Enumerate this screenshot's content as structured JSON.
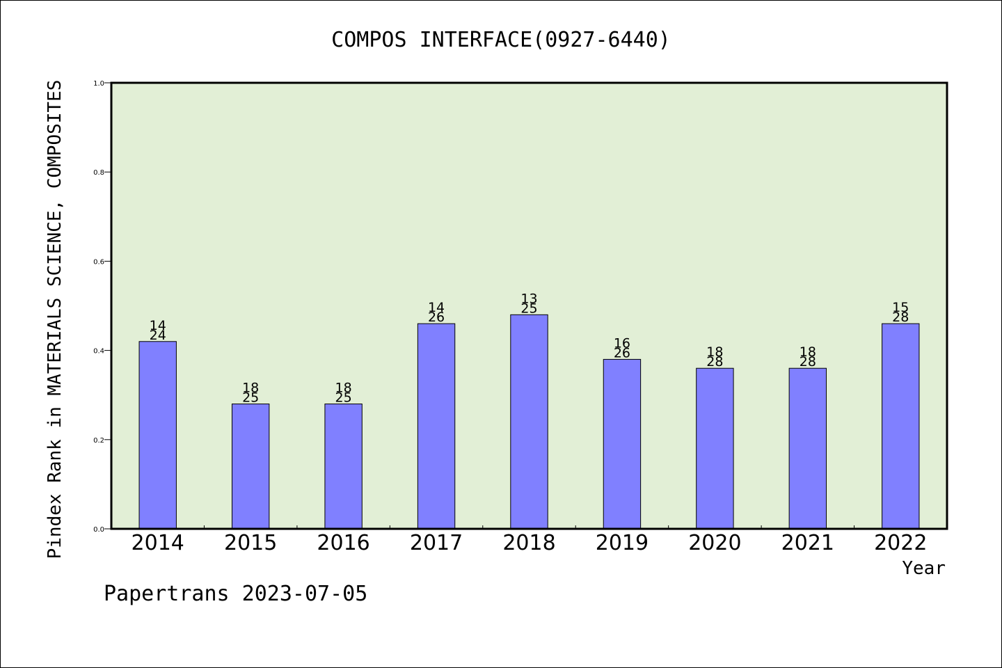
{
  "chart_data": {
    "type": "bar",
    "title": "COMPOS INTERFACE(0927-6440)",
    "ylabel": "Pindex Rank in MATERIALS SCIENCE, COMPOSITES",
    "xlabel": "Year",
    "footer": "Papertrans 2023-07-05",
    "ylim": [
      0,
      1.0
    ],
    "yticks": [
      "0.0",
      "0.2",
      "0.4",
      "0.6",
      "0.8",
      "1.0"
    ],
    "categories": [
      "2014",
      "2015",
      "2016",
      "2017",
      "2018",
      "2019",
      "2020",
      "2021",
      "2022"
    ],
    "values": [
      0.42,
      0.28,
      0.28,
      0.46,
      0.48,
      0.38,
      0.36,
      0.36,
      0.46
    ],
    "rank": [
      "14",
      "18",
      "18",
      "14",
      "13",
      "16",
      "18",
      "18",
      "15"
    ],
    "total": [
      "24",
      "25",
      "25",
      "26",
      "25",
      "26",
      "28",
      "28",
      "28"
    ],
    "grid": false,
    "colors": {
      "plot_background": "#e2efd6",
      "bar_fill": "#8080ff",
      "bar_stroke": "#000000"
    }
  }
}
